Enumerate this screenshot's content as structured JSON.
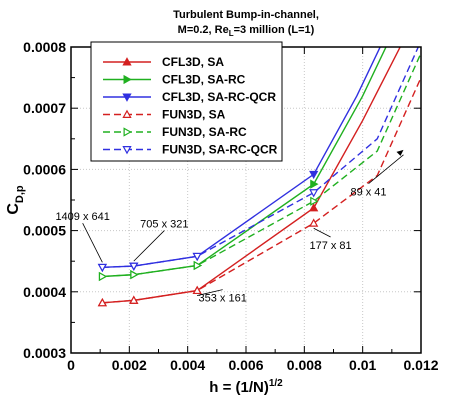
{
  "chart_data": {
    "type": "line",
    "title_lines": [
      "Turbulent Bump-in-channel,",
      "M=0.2, Re",
      "L",
      "=3 million (L=1)"
    ],
    "xlabel": "h = (1/N)",
    "xlabel_sup": "1/2",
    "ylabel": "C",
    "ylabel_sub": "D,p",
    "xlim": [
      0,
      0.012
    ],
    "ylim": [
      0.0003,
      0.0008
    ],
    "xticks": [
      0,
      0.002,
      0.004,
      0.006,
      0.008,
      0.01,
      0.012
    ],
    "xtick_labels": [
      "0",
      "0.002",
      "0.004",
      "0.006",
      "0.008",
      "0.01",
      "0.012"
    ],
    "yticks": [
      0.0003,
      0.0004,
      0.0005,
      0.0006,
      0.0007,
      0.0008
    ],
    "ytick_labels": [
      "0.0003",
      "0.0004",
      "0.0005",
      "0.0006",
      "0.0007",
      "0.0008"
    ],
    "grid": true,
    "legend_position": "top-left",
    "series": [
      {
        "name": "CFL3D, SA",
        "color": "#d42020",
        "dash": "solid",
        "marker": "triangle-up",
        "x": [
          0.001075,
          0.002153,
          0.004326,
          0.008321,
          0.01,
          0.0115
        ],
        "y": [
          0.000382,
          0.000386,
          0.000402,
          0.000537,
          0.00068,
          0.00082
        ]
      },
      {
        "name": "CFL3D, SA-RC",
        "color": "#20b020",
        "dash": "solid",
        "marker": "triangle-right",
        "x": [
          0.001075,
          0.002153,
          0.004326,
          0.008321,
          0.01,
          0.011
        ],
        "y": [
          0.000425,
          0.000428,
          0.000443,
          0.000576,
          0.00072,
          0.00082
        ]
      },
      {
        "name": "CFL3D, SA-RC-QCR",
        "color": "#3030e0",
        "dash": "solid",
        "marker": "triangle-down",
        "x": [
          0.001075,
          0.002153,
          0.004326,
          0.008321,
          0.0098,
          0.0108
        ],
        "y": [
          0.00044,
          0.000442,
          0.000458,
          0.000592,
          0.00072,
          0.00082
        ]
      },
      {
        "name": "FUN3D, SA",
        "color": "#d42020",
        "dash": "dashed",
        "marker": "triangle-up",
        "x": [
          0.001075,
          0.002153,
          0.004326,
          0.008321,
          0.0105,
          0.012
        ],
        "y": [
          0.000382,
          0.000386,
          0.000402,
          0.000512,
          0.00059,
          0.00075
        ]
      },
      {
        "name": "FUN3D, SA-RC",
        "color": "#20b020",
        "dash": "dashed",
        "marker": "triangle-right",
        "x": [
          0.001075,
          0.002153,
          0.004326,
          0.008321,
          0.0105,
          0.012
        ],
        "y": [
          0.000425,
          0.000428,
          0.000443,
          0.000548,
          0.00063,
          0.00079
        ]
      },
      {
        "name": "FUN3D, SA-RC-QCR",
        "color": "#3030e0",
        "dash": "dashed",
        "marker": "triangle-down",
        "x": [
          0.001075,
          0.002153,
          0.004326,
          0.008321,
          0.0105,
          0.012
        ],
        "y": [
          0.00044,
          0.000442,
          0.000458,
          0.000562,
          0.00065,
          0.00081
        ]
      }
    ],
    "annotations": [
      {
        "text": "1409 x 641",
        "at": [
          0.001075,
          0.00044
        ],
        "label_at": [
          0.0004,
          0.000517
        ]
      },
      {
        "text": "705 x 321",
        "at": [
          0.002153,
          0.000442
        ],
        "label_at": [
          0.0032,
          0.000505
        ]
      },
      {
        "text": "353 x 161",
        "at": [
          0.004326,
          0.000402
        ],
        "label_at": [
          0.0052,
          0.000384
        ]
      },
      {
        "text": "177 x 81",
        "at": [
          0.008321,
          0.000512
        ],
        "label_at": [
          0.0089,
          0.00047
        ]
      },
      {
        "text": "89 x 41",
        "at": [
          0.0114,
          0.000632
        ],
        "label_at": [
          0.0102,
          0.000557
        ]
      }
    ]
  }
}
